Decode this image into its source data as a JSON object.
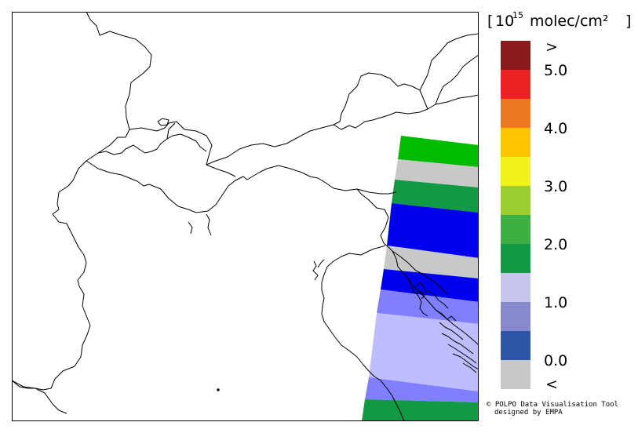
{
  "legend": {
    "unit_base": "10",
    "unit_exponent": "15",
    "unit_rest": "molec/cm²",
    "over_label": ">",
    "under_label": "<",
    "tick_labels": [
      "5.0",
      "4.0",
      "3.0",
      "2.0",
      "1.0",
      "0.0"
    ],
    "bins": [
      {
        "color": "#8b1a1a",
        "label": "> 5.0"
      },
      {
        "color": "#ee2222",
        "label": "4.5-5.0"
      },
      {
        "color": "#ee7722",
        "label": "4.0-4.5"
      },
      {
        "color": "#ffc400",
        "label": "3.5-4.0"
      },
      {
        "color": "#f2f21a",
        "label": "3.0-3.5"
      },
      {
        "color": "#9acd32",
        "label": "2.5-3.0"
      },
      {
        "color": "#3cb043",
        "label": "2.0-2.5"
      },
      {
        "color": "#119944",
        "label": "1.5-2.0"
      },
      {
        "color": "#c5c5ee",
        "label": "1.0-1.5"
      },
      {
        "color": "#8888cc",
        "label": "0.5-1.0"
      },
      {
        "color": "#2e55a8",
        "label": "0.0-0.5"
      },
      {
        "color": "#c8c8c8",
        "label": "< 0.0"
      }
    ]
  },
  "swath_colors": {
    "green": "#00bb00",
    "grey": "#c8c8c8",
    "dark_green": "#119944",
    "blue": "#0000ee",
    "medium_blue": "#7f7fff",
    "light_blue": "#bdbdff"
  },
  "credit": {
    "line1": "© POLPO Data Visualisation Tool",
    "line2": "designed by EMPA"
  }
}
